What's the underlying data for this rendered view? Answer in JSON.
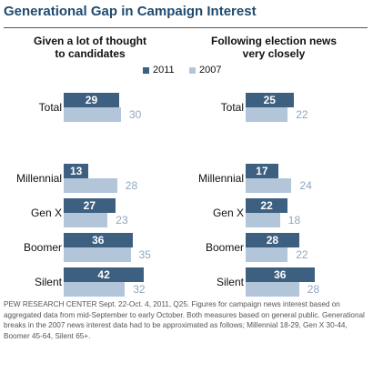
{
  "title": "Generational Gap in Campaign Interest",
  "legend": {
    "series": [
      {
        "name": "2011",
        "color": "#3d5f80"
      },
      {
        "name": "2007",
        "color": "#b3c6d9"
      }
    ]
  },
  "panels": [
    {
      "title_line1": "Given a lot of thought",
      "title_line2": "to candidates"
    },
    {
      "title_line1": "Following election news",
      "title_line2": "very closely"
    }
  ],
  "chart_data": [
    {
      "type": "bar",
      "title": "Given a lot of thought to candidates",
      "categories": [
        "Total",
        "Millennial",
        "Gen X",
        "Boomer",
        "Silent"
      ],
      "series": [
        {
          "name": "2011",
          "values": [
            29,
            13,
            27,
            36,
            42
          ]
        },
        {
          "name": "2007",
          "values": [
            30,
            28,
            23,
            35,
            32
          ]
        }
      ]
    },
    {
      "type": "bar",
      "title": "Following election news very closely",
      "categories": [
        "Total",
        "Millennial",
        "Gen X",
        "Boomer",
        "Silent"
      ],
      "series": [
        {
          "name": "2011",
          "values": [
            25,
            17,
            22,
            28,
            36
          ]
        },
        {
          "name": "2007",
          "values": [
            22,
            24,
            18,
            22,
            28
          ]
        }
      ]
    }
  ],
  "footnote": "PEW RESEARCH CENTER Sept. 22-Oct. 4, 2011, Q25. Figures for campaign news interest based on aggregated data from mid-September to early October. Both measures based on general public. Generational breaks in the 2007 news interest data had to be approximated as follows; Millennial 18-29, Gen X 30-44, Boomer 45-64, Silent 65+."
}
